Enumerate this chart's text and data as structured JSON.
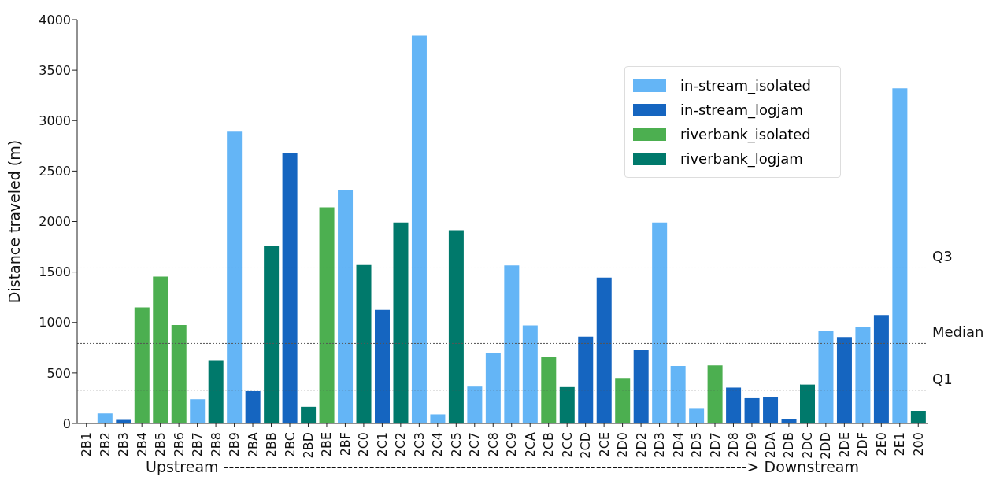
{
  "chart_data": {
    "type": "bar",
    "stacked": true,
    "categories": [
      "2B1",
      "2B2",
      "2B3",
      "2B4",
      "2B5",
      "2B6",
      "2B7",
      "2B8",
      "2B9",
      "2BA",
      "2BB",
      "2BC",
      "2BD",
      "2BE",
      "2BF",
      "2C0",
      "2C1",
      "2C2",
      "2C3",
      "2C4",
      "2C5",
      "2C7",
      "2C8",
      "2C9",
      "2CA",
      "2CB",
      "2CC",
      "2CD",
      "2CE",
      "2D0",
      "2D2",
      "2D3",
      "2D4",
      "2D5",
      "2D7",
      "2D8",
      "2D9",
      "2DA",
      "2DB",
      "2DC",
      "2DD",
      "2DE",
      "2DF",
      "2E0",
      "2E1",
      "200"
    ],
    "series": [
      {
        "name": "in-stream_isolated",
        "color": "#64b5f6",
        "values": [
          0,
          100,
          null,
          null,
          null,
          null,
          240,
          null,
          2890,
          null,
          null,
          null,
          null,
          null,
          2315,
          null,
          null,
          null,
          3840,
          90,
          null,
          365,
          695,
          1565,
          970,
          null,
          null,
          null,
          null,
          null,
          null,
          1990,
          570,
          145,
          null,
          null,
          null,
          null,
          null,
          null,
          920,
          null,
          955,
          null,
          3320,
          null
        ]
      },
      {
        "name": "in-stream_logjam",
        "color": "#1565c0",
        "values": [
          null,
          null,
          35,
          null,
          null,
          null,
          null,
          null,
          null,
          320,
          null,
          2680,
          null,
          null,
          null,
          null,
          1125,
          null,
          null,
          null,
          null,
          null,
          null,
          null,
          null,
          null,
          null,
          860,
          1445,
          null,
          725,
          null,
          null,
          null,
          null,
          355,
          250,
          260,
          40,
          null,
          null,
          855,
          null,
          1075,
          null,
          null
        ]
      },
      {
        "name": "riverbank_isolated",
        "color": "#4caf50",
        "values": [
          null,
          null,
          null,
          1150,
          1455,
          975,
          null,
          null,
          null,
          null,
          null,
          null,
          null,
          2140,
          null,
          null,
          null,
          null,
          null,
          null,
          null,
          null,
          null,
          null,
          null,
          660,
          null,
          null,
          null,
          450,
          null,
          null,
          null,
          null,
          575,
          null,
          null,
          null,
          null,
          null,
          null,
          null,
          null,
          null,
          null,
          null
        ]
      },
      {
        "name": "riverbank_logjam",
        "color": "#00796b",
        "values": [
          null,
          null,
          null,
          null,
          null,
          null,
          null,
          620,
          null,
          null,
          1755,
          null,
          165,
          null,
          null,
          1570,
          null,
          1990,
          null,
          null,
          1915,
          null,
          null,
          null,
          null,
          null,
          360,
          null,
          null,
          null,
          null,
          null,
          null,
          null,
          null,
          null,
          null,
          null,
          null,
          385,
          null,
          null,
          null,
          null,
          null,
          125
        ]
      }
    ],
    "ylabel": "Distance traveled (m)",
    "xlabel": "Upstream -------------------------------------------------------------------------------------------------> Downstream",
    "ylim": [
      0,
      4000
    ],
    "yticks": [
      0,
      500,
      1000,
      1500,
      2000,
      2500,
      3000,
      3500,
      4000
    ],
    "ref_lines": [
      {
        "axis": "y",
        "value": 1540,
        "label": "Q3",
        "color": "#555555",
        "line_style": "dotted"
      },
      {
        "axis": "y",
        "value": 792,
        "label": "Median",
        "color": "#555555",
        "line_style": "dotted"
      },
      {
        "axis": "y",
        "value": 330,
        "label": "Q1",
        "color": "#555555",
        "line_style": "dotted"
      }
    ],
    "legend": "top right"
  }
}
